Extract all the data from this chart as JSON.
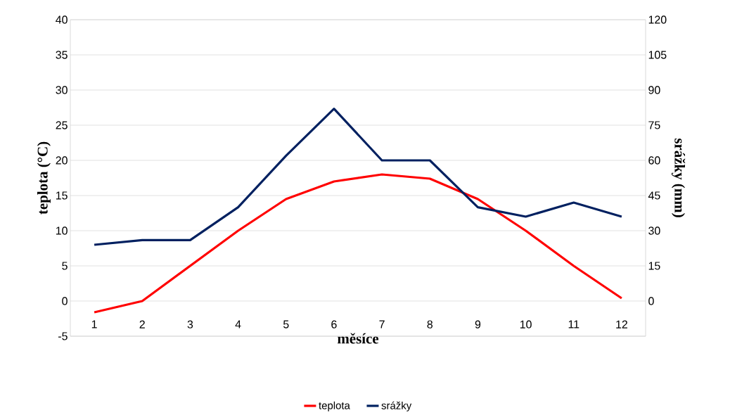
{
  "chart_data": {
    "type": "line",
    "xlabel": "měsíce",
    "ylabel": "teplota (°C)",
    "y2label": "srážky (mm)",
    "categories": [
      "1",
      "2",
      "3",
      "4",
      "5",
      "6",
      "7",
      "8",
      "9",
      "10",
      "11",
      "12"
    ],
    "series": [
      {
        "name": "teplota",
        "color": "#ff0000",
        "values": [
          -1.6,
          0,
          5,
          10,
          14.5,
          17,
          18,
          17.4,
          14.5,
          10,
          5,
          0.4
        ]
      },
      {
        "name": "srážky",
        "color": "#002060",
        "axis": "y2",
        "values": [
          24,
          26,
          26,
          40,
          62,
          82,
          60,
          60,
          40,
          36,
          42,
          36
        ]
      }
    ],
    "ylim": [
      -5,
      40
    ],
    "yticks": [
      -5,
      0,
      5,
      10,
      15,
      20,
      25,
      30,
      35,
      40
    ],
    "y2lim": [
      -15,
      120
    ],
    "y2ticks": [
      0,
      15,
      30,
      45,
      60,
      75,
      90,
      105,
      120
    ],
    "grid": "y",
    "legend": "bottom"
  }
}
